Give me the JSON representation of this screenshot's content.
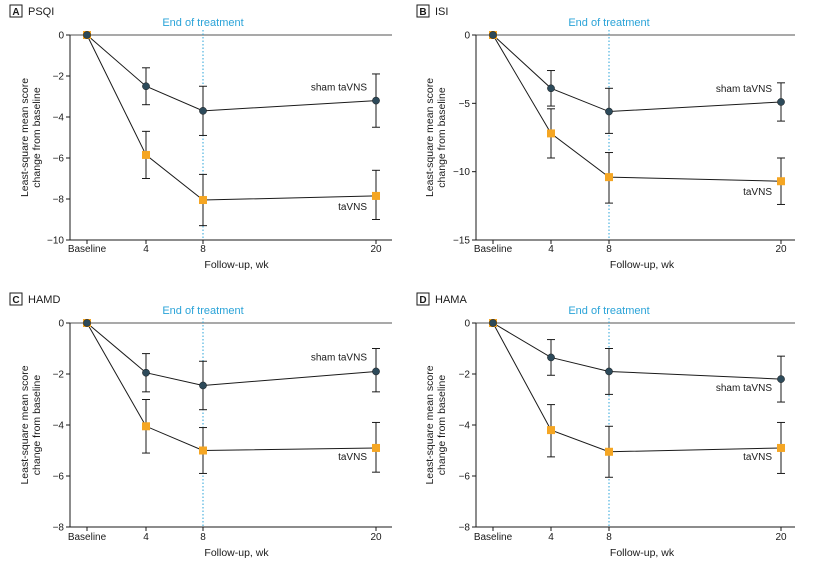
{
  "shared": {
    "x_categories": [
      "Baseline",
      "4",
      "8",
      "20"
    ],
    "x_values": [
      0,
      4,
      8,
      20
    ],
    "xlabel": "Follow-up, wk",
    "ylabel_line1": "Least-square mean score",
    "ylabel_line2": "change from baseline",
    "end_of_treatment_label": "End of treatment",
    "end_of_treatment_week": 8,
    "colors": {
      "sham": "#2d4a5a",
      "tavns": "#f5a623",
      "eot_line": "#2aa3d8",
      "axis": "#1a1a1a"
    }
  },
  "chart_data": [
    {
      "panel_letter": "A",
      "title": "PSQI",
      "type": "line",
      "ylim": [
        -10,
        0
      ],
      "yticks": [
        "0",
        "−2",
        "−4",
        "−6",
        "−8",
        "−10"
      ],
      "ytick_values": [
        0,
        -2,
        -4,
        -6,
        -8,
        -10
      ],
      "series": [
        {
          "name": "sham taVNS",
          "values": [
            0,
            -2.5,
            -3.7,
            -3.2
          ],
          "err_low": [
            0,
            -3.4,
            -4.9,
            -4.5
          ],
          "err_high": [
            0,
            -1.6,
            -2.5,
            -1.9
          ]
        },
        {
          "name": "taVNS",
          "values": [
            0,
            -5.85,
            -8.05,
            -7.85
          ],
          "err_low": [
            0,
            -7.0,
            -9.3,
            -9.0
          ],
          "err_high": [
            0,
            -4.7,
            -6.8,
            -6.6
          ]
        }
      ]
    },
    {
      "panel_letter": "B",
      "title": "ISI",
      "type": "line",
      "ylim": [
        -15,
        0
      ],
      "yticks": [
        "0",
        "−5",
        "−10",
        "−15"
      ],
      "ytick_values": [
        0,
        -5,
        -10,
        -15
      ],
      "series": [
        {
          "name": "sham taVNS",
          "values": [
            0,
            -3.9,
            -5.6,
            -4.9
          ],
          "err_low": [
            0,
            -5.2,
            -7.2,
            -6.3
          ],
          "err_high": [
            0,
            -2.6,
            -3.9,
            -3.5
          ]
        },
        {
          "name": "taVNS",
          "values": [
            0,
            -7.2,
            -10.4,
            -10.7
          ],
          "err_low": [
            0,
            -9.0,
            -12.3,
            -12.4
          ],
          "err_high": [
            0,
            -5.4,
            -8.6,
            -9.0
          ]
        }
      ]
    },
    {
      "panel_letter": "C",
      "title": "HAMD",
      "type": "line",
      "ylim": [
        -8,
        0
      ],
      "yticks": [
        "0",
        "−2",
        "−4",
        "−6",
        "−8"
      ],
      "ytick_values": [
        0,
        -2,
        -4,
        -6,
        -8
      ],
      "series": [
        {
          "name": "sham taVNS",
          "values": [
            0,
            -1.95,
            -2.45,
            -1.9
          ],
          "err_low": [
            0,
            -2.7,
            -3.4,
            -2.7
          ],
          "err_high": [
            0,
            -1.2,
            -1.5,
            -1.0
          ]
        },
        {
          "name": "taVNS",
          "values": [
            0,
            -4.05,
            -5.0,
            -4.9
          ],
          "err_low": [
            0,
            -5.1,
            -5.9,
            -5.85
          ],
          "err_high": [
            0,
            -3.0,
            -4.1,
            -3.9
          ]
        }
      ]
    },
    {
      "panel_letter": "D",
      "title": "HAMA",
      "type": "line",
      "ylim": [
        -8,
        0
      ],
      "yticks": [
        "0",
        "−2",
        "−4",
        "−6",
        "−8"
      ],
      "ytick_values": [
        0,
        -2,
        -4,
        -6,
        -8
      ],
      "series": [
        {
          "name": "sham taVNS",
          "values": [
            0,
            -1.35,
            -1.9,
            -2.2
          ],
          "err_low": [
            0,
            -2.05,
            -2.8,
            -3.1
          ],
          "err_high": [
            0,
            -0.65,
            -1.0,
            -1.3
          ]
        },
        {
          "name": "taVNS",
          "values": [
            0,
            -4.2,
            -5.05,
            -4.9
          ],
          "err_low": [
            0,
            -5.25,
            -6.05,
            -5.9
          ],
          "err_high": [
            0,
            -3.2,
            -4.05,
            -3.9
          ]
        }
      ]
    }
  ]
}
